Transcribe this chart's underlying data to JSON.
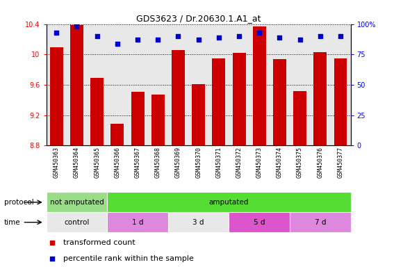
{
  "title": "GDS3623 / Dr.20630.1.A1_at",
  "samples": [
    "GSM450363",
    "GSM450364",
    "GSM450365",
    "GSM450366",
    "GSM450367",
    "GSM450368",
    "GSM450369",
    "GSM450370",
    "GSM450371",
    "GSM450372",
    "GSM450373",
    "GSM450374",
    "GSM450375",
    "GSM450376",
    "GSM450377"
  ],
  "transformed_count": [
    10.09,
    10.39,
    9.69,
    9.09,
    9.51,
    9.47,
    10.06,
    9.61,
    9.95,
    10.02,
    10.37,
    9.94,
    9.52,
    10.03,
    9.95
  ],
  "percentile_rank": [
    93,
    98,
    90,
    84,
    87,
    87,
    90,
    87,
    89,
    90,
    93,
    89,
    87,
    90,
    90
  ],
  "ylim_left": [
    8.8,
    10.4
  ],
  "ylim_right": [
    0,
    100
  ],
  "yticks_left": [
    8.8,
    9.2,
    9.6,
    10.0,
    10.4
  ],
  "yticks_right": [
    0,
    25,
    50,
    75,
    100
  ],
  "yticklabels_left": [
    "8.8",
    "9.2",
    "9.6",
    "10",
    "10.4"
  ],
  "yticklabels_right": [
    "0",
    "25",
    "50",
    "75",
    "100%"
  ],
  "bar_color": "#cc0000",
  "dot_color": "#0000cc",
  "background_color": "#e8e8e8",
  "protocol_groups": [
    {
      "label": "not amputated",
      "start": 0,
      "end": 3,
      "color": "#99dd88"
    },
    {
      "label": "amputated",
      "start": 3,
      "end": 15,
      "color": "#55dd33"
    }
  ],
  "time_groups": [
    {
      "label": "control",
      "start": 0,
      "end": 3,
      "color": "#e8e8e8"
    },
    {
      "label": "1 d",
      "start": 3,
      "end": 6,
      "color": "#dd88dd"
    },
    {
      "label": "3 d",
      "start": 6,
      "end": 9,
      "color": "#e8e8e8"
    },
    {
      "label": "5 d",
      "start": 9,
      "end": 12,
      "color": "#dd55cc"
    },
    {
      "label": "7 d",
      "start": 12,
      "end": 15,
      "color": "#dd88dd"
    }
  ]
}
